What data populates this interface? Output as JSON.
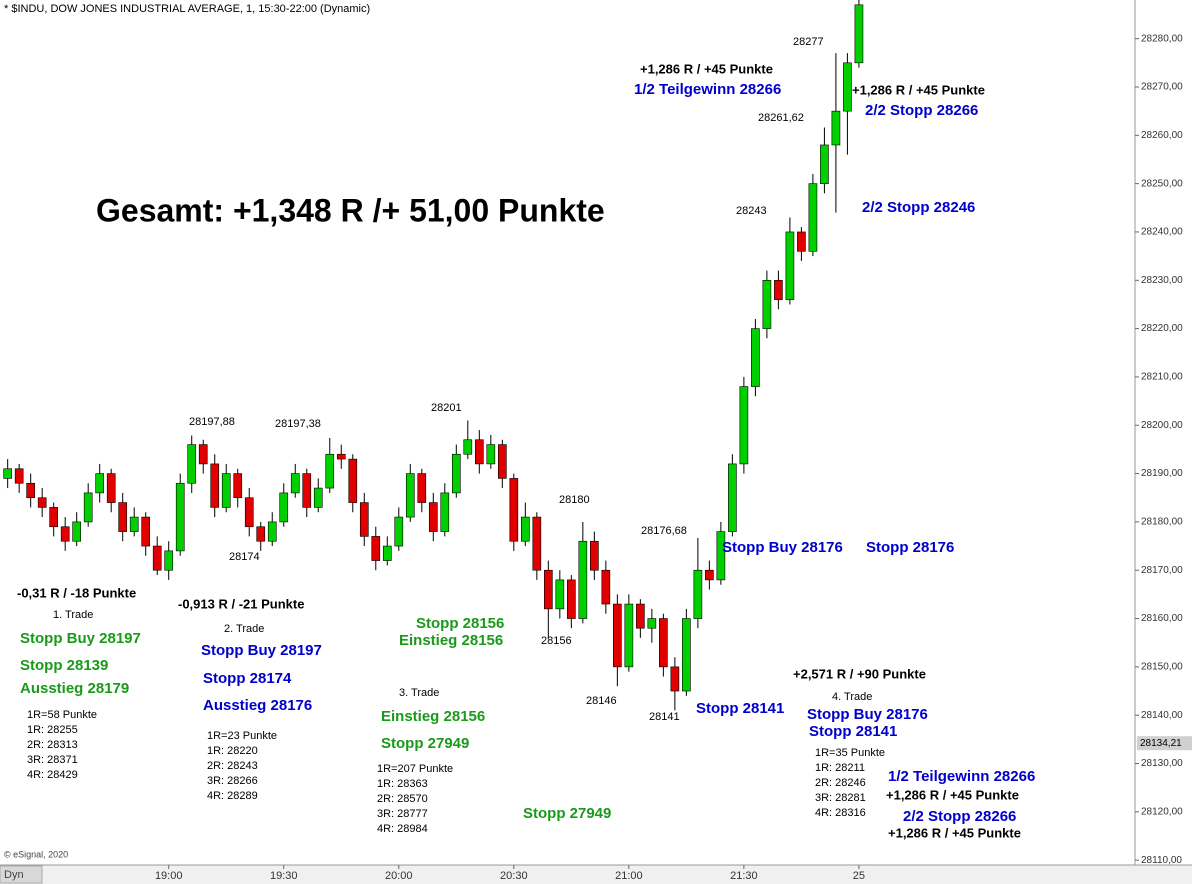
{
  "chart_data": {
    "type": "candlestick",
    "title": "* $INDU, DOW JONES INDUSTRIAL AVERAGE, 1, 15:30-22:00 (Dynamic)",
    "footer": "© eSignal, 2020",
    "mode_label": "Dyn",
    "up_color": "#00d000",
    "down_color": "#e00000",
    "xlim": [
      "18:16",
      "23:12"
    ],
    "xticks": [
      {
        "value": "19:00",
        "label": "19:00"
      },
      {
        "value": "19:30",
        "label": "19:30"
      },
      {
        "value": "20:00",
        "label": "20:00"
      },
      {
        "value": "20:30",
        "label": "20:30"
      },
      {
        "value": "21:00",
        "label": "21:00"
      },
      {
        "value": "21:30",
        "label": "21:30"
      },
      {
        "value": "22:00",
        "label": "25"
      }
    ],
    "ylim": [
      28109,
      28288
    ],
    "yticks": [
      {
        "value": 28110,
        "label": "28110,00"
      },
      {
        "value": 28120,
        "label": "28120,00"
      },
      {
        "value": 28130,
        "label": "28130,00"
      },
      {
        "value": 28140,
        "label": "28140,00"
      },
      {
        "value": 28150,
        "label": "28150,00"
      },
      {
        "value": 28160,
        "label": "28160,00"
      },
      {
        "value": 28170,
        "label": "28170,00"
      },
      {
        "value": 28180,
        "label": "28180,00"
      },
      {
        "value": 28190,
        "label": "28190,00"
      },
      {
        "value": 28200,
        "label": "28200,00"
      },
      {
        "value": 28210,
        "label": "28210,00"
      },
      {
        "value": 28220,
        "label": "28220,00"
      },
      {
        "value": 28230,
        "label": "28230,00"
      },
      {
        "value": 28240,
        "label": "28240,00"
      },
      {
        "value": 28250,
        "label": "28250,00"
      },
      {
        "value": 28260,
        "label": "28260,00"
      },
      {
        "value": 28270,
        "label": "28270,00"
      },
      {
        "value": 28280,
        "label": "28280,00"
      }
    ],
    "last_price": {
      "value": 28134.21,
      "label": "28134,21"
    },
    "x": [
      "18:18",
      "18:21",
      "18:24",
      "18:27",
      "18:30",
      "18:33",
      "18:36",
      "18:39",
      "18:42",
      "18:45",
      "18:48",
      "18:51",
      "18:54",
      "18:57",
      "19:00",
      "19:03",
      "19:06",
      "19:09",
      "19:12",
      "19:15",
      "19:18",
      "19:21",
      "19:24",
      "19:27",
      "19:30",
      "19:33",
      "19:36",
      "19:39",
      "19:42",
      "19:45",
      "19:48",
      "19:51",
      "19:54",
      "19:57",
      "20:00",
      "20:03",
      "20:06",
      "20:09",
      "20:12",
      "20:15",
      "20:18",
      "20:21",
      "20:24",
      "20:27",
      "20:30",
      "20:33",
      "20:36",
      "20:39",
      "20:42",
      "20:45",
      "20:48",
      "20:51",
      "20:54",
      "20:57",
      "21:00",
      "21:03",
      "21:06",
      "21:09",
      "21:12",
      "21:15",
      "21:18",
      "21:21",
      "21:24",
      "21:27",
      "21:30",
      "21:33",
      "21:36",
      "21:39",
      "21:42",
      "21:45",
      "21:48",
      "21:51",
      "21:54",
      "21:57",
      "22:00"
    ],
    "ohlc": [
      [
        28189,
        28193,
        28187,
        28191
      ],
      [
        28191,
        28192,
        28186,
        28188
      ],
      [
        28188,
        28190,
        28183,
        28185
      ],
      [
        28185,
        28187,
        28181,
        28183
      ],
      [
        28183,
        28184,
        28177,
        28179
      ],
      [
        28179,
        28181,
        28174,
        28176
      ],
      [
        28176,
        28182,
        28175,
        28180
      ],
      [
        28180,
        28188,
        28179,
        28186
      ],
      [
        28186,
        28192,
        28184,
        28190
      ],
      [
        28190,
        28191,
        28182,
        28184
      ],
      [
        28184,
        28186,
        28176,
        28178
      ],
      [
        28178,
        28183,
        28177,
        28181
      ],
      [
        28181,
        28182,
        28173,
        28175
      ],
      [
        28175,
        28177,
        28169,
        28170
      ],
      [
        28170,
        28176,
        28168,
        28174
      ],
      [
        28174,
        28190,
        28173,
        28188
      ],
      [
        28188,
        28197.88,
        28186,
        28196
      ],
      [
        28196,
        28197,
        28190,
        28192
      ],
      [
        28192,
        28194,
        28181,
        28183
      ],
      [
        28183,
        28192,
        28182,
        28190
      ],
      [
        28190,
        28191,
        28183,
        28185
      ],
      [
        28185,
        28187,
        28177,
        28179
      ],
      [
        28179,
        28180,
        28174,
        28176
      ],
      [
        28176,
        28182,
        28175,
        28180
      ],
      [
        28180,
        28188,
        28179,
        28186
      ],
      [
        28186,
        28192,
        28185,
        28190
      ],
      [
        28190,
        28191,
        28181,
        28183
      ],
      [
        28183,
        28189,
        28182,
        28187
      ],
      [
        28187,
        28197.38,
        28186,
        28194
      ],
      [
        28194,
        28196,
        28191,
        28193
      ],
      [
        28193,
        28194,
        28182,
        28184
      ],
      [
        28184,
        28186,
        28175,
        28177
      ],
      [
        28177,
        28179,
        28170,
        28172
      ],
      [
        28172,
        28177,
        28171,
        28175
      ],
      [
        28175,
        28183,
        28174,
        28181
      ],
      [
        28181,
        28192,
        28180,
        28190
      ],
      [
        28190,
        28191,
        28182,
        28184
      ],
      [
        28184,
        28186,
        28176,
        28178
      ],
      [
        28178,
        28188,
        28177,
        28186
      ],
      [
        28186,
        28196,
        28185,
        28194
      ],
      [
        28194,
        28201,
        28193,
        28197
      ],
      [
        28197,
        28199,
        28190,
        28192
      ],
      [
        28192,
        28198,
        28191,
        28196
      ],
      [
        28196,
        28197,
        28187,
        28189
      ],
      [
        28189,
        28190,
        28174,
        28176
      ],
      [
        28176,
        28184,
        28175,
        28181
      ],
      [
        28181,
        28182,
        28168,
        28170
      ],
      [
        28170,
        28172,
        28156,
        28162
      ],
      [
        28162,
        28170,
        28160,
        28168
      ],
      [
        28168,
        28169,
        28158,
        28160
      ],
      [
        28160,
        28180,
        28159,
        28176
      ],
      [
        28176,
        28178,
        28168,
        28170
      ],
      [
        28170,
        28172,
        28161,
        28163
      ],
      [
        28163,
        28165,
        28146,
        28150
      ],
      [
        28150,
        28165,
        28149,
        28163
      ],
      [
        28163,
        28164,
        28156,
        28158
      ],
      [
        28158,
        28162,
        28155,
        28160
      ],
      [
        28160,
        28161,
        28148,
        28150
      ],
      [
        28150,
        28152,
        28141,
        28145
      ],
      [
        28145,
        28162,
        28144,
        28160
      ],
      [
        28160,
        28176.68,
        28158,
        28170
      ],
      [
        28170,
        28172,
        28166,
        28168
      ],
      [
        28168,
        28180,
        28167,
        28178
      ],
      [
        28178,
        28194,
        28177,
        28192
      ],
      [
        28192,
        28210,
        28190,
        28208
      ],
      [
        28208,
        28222,
        28206,
        28220
      ],
      [
        28220,
        28232,
        28218,
        28230
      ],
      [
        28230,
        28232,
        28224,
        28226
      ],
      [
        28226,
        28243,
        28225,
        28240
      ],
      [
        28240,
        28241,
        28234,
        28236
      ],
      [
        28236,
        28252,
        28235,
        28250
      ],
      [
        28250,
        28261.62,
        28248,
        28258
      ],
      [
        28258,
        28277,
        28244,
        28265
      ],
      [
        28265,
        28277,
        28256,
        28275
      ],
      [
        28275,
        28288,
        28274,
        28287
      ]
    ],
    "annotations": [
      {
        "text": "+1,286 R / +45 Punkte",
        "color": "#000000"
      },
      {
        "text": "1/2 Teilgewinn 28266",
        "color": "#0000cc"
      },
      {
        "text": "28277",
        "color": "#000000"
      },
      {
        "text": "+1,286 R / +45 Punkte",
        "color": "#000000"
      },
      {
        "text": "2/2 Stopp 28266",
        "color": "#0000cc"
      },
      {
        "text": "28261,62",
        "color": "#000000"
      },
      {
        "text": "Gesamt: +1,348 R /+ 51,00 Punkte",
        "color": "#000000"
      },
      {
        "text": "28243",
        "color": "#000000"
      },
      {
        "text": "2/2 Stopp 28246",
        "color": "#0000cc"
      },
      {
        "text": "28197,88",
        "color": "#000000"
      },
      {
        "text": "28197,38",
        "color": "#000000"
      },
      {
        "text": "28201",
        "color": "#000000"
      },
      {
        "text": "28180",
        "color": "#000000"
      },
      {
        "text": "28176,68",
        "color": "#000000"
      },
      {
        "text": "Stopp Buy 28176",
        "color": "#0000cc"
      },
      {
        "text": "Stopp 28176",
        "color": "#0000cc"
      },
      {
        "text": "28174",
        "color": "#000000"
      },
      {
        "text": "-0,31 R / -18 Punkte",
        "color": "#000000"
      },
      {
        "text": "1. Trade",
        "color": "#000000"
      },
      {
        "text": "Stopp Buy 28197",
        "color": "#1a9a1a"
      },
      {
        "text": "Stopp 28139",
        "color": "#1a9a1a"
      },
      {
        "text": "Ausstieg 28179",
        "color": "#1a9a1a"
      },
      {
        "text": "1R=58 Punkte",
        "color": "#000000"
      },
      {
        "text": "1R: 28255",
        "color": "#000000"
      },
      {
        "text": "2R: 28313",
        "color": "#000000"
      },
      {
        "text": "3R: 28371",
        "color": "#000000"
      },
      {
        "text": "4R: 28429",
        "color": "#000000"
      },
      {
        "text": "-0,913 R / -21 Punkte",
        "color": "#000000"
      },
      {
        "text": "2. Trade",
        "color": "#000000"
      },
      {
        "text": "Stopp Buy 28197",
        "color": "#0000cc"
      },
      {
        "text": "Stopp 28174",
        "color": "#0000cc"
      },
      {
        "text": "Ausstieg 28176",
        "color": "#0000cc"
      },
      {
        "text": "1R=23 Punkte",
        "color": "#000000"
      },
      {
        "text": "1R: 28220",
        "color": "#000000"
      },
      {
        "text": "2R: 28243",
        "color": "#000000"
      },
      {
        "text": "3R: 28266",
        "color": "#000000"
      },
      {
        "text": "4R: 28289",
        "color": "#000000"
      },
      {
        "text": "Stopp 28156",
        "color": "#1a9a1a"
      },
      {
        "text": "Einstieg 28156",
        "color": "#1a9a1a"
      },
      {
        "text": "28156",
        "color": "#000000"
      },
      {
        "text": "3. Trade",
        "color": "#000000"
      },
      {
        "text": "28146",
        "color": "#000000"
      },
      {
        "text": "Einstieg 28156",
        "color": "#1a9a1a"
      },
      {
        "text": "Stopp 27949",
        "color": "#1a9a1a"
      },
      {
        "text": "1R=207 Punkte",
        "color": "#000000"
      },
      {
        "text": "1R: 28363",
        "color": "#000000"
      },
      {
        "text": "2R: 28570",
        "color": "#000000"
      },
      {
        "text": "3R: 28777",
        "color": "#000000"
      },
      {
        "text": "4R: 28984",
        "color": "#000000"
      },
      {
        "text": "Stopp 27949",
        "color": "#1a9a1a"
      },
      {
        "text": "28141",
        "color": "#000000"
      },
      {
        "text": "Stopp 28141",
        "color": "#0000cc"
      },
      {
        "text": "+2,571 R / +90 Punkte",
        "color": "#000000"
      },
      {
        "text": "4. Trade",
        "color": "#000000"
      },
      {
        "text": "Stopp Buy 28176",
        "color": "#0000cc"
      },
      {
        "text": "Stopp 28141",
        "color": "#0000cc"
      },
      {
        "text": "1R=35 Punkte",
        "color": "#000000"
      },
      {
        "text": "1R: 28211",
        "color": "#000000"
      },
      {
        "text": "2R: 28246",
        "color": "#000000"
      },
      {
        "text": "3R: 28281",
        "color": "#000000"
      },
      {
        "text": "4R: 28316",
        "color": "#000000"
      },
      {
        "text": "1/2 Teilgewinn 28266",
        "color": "#0000cc"
      },
      {
        "text": "+1,286 R / +45 Punkte",
        "color": "#000000"
      },
      {
        "text": "2/2 Stopp 28266",
        "color": "#0000cc"
      },
      {
        "text": "+1,286 R / +45 Punkte",
        "color": "#000000"
      }
    ]
  }
}
